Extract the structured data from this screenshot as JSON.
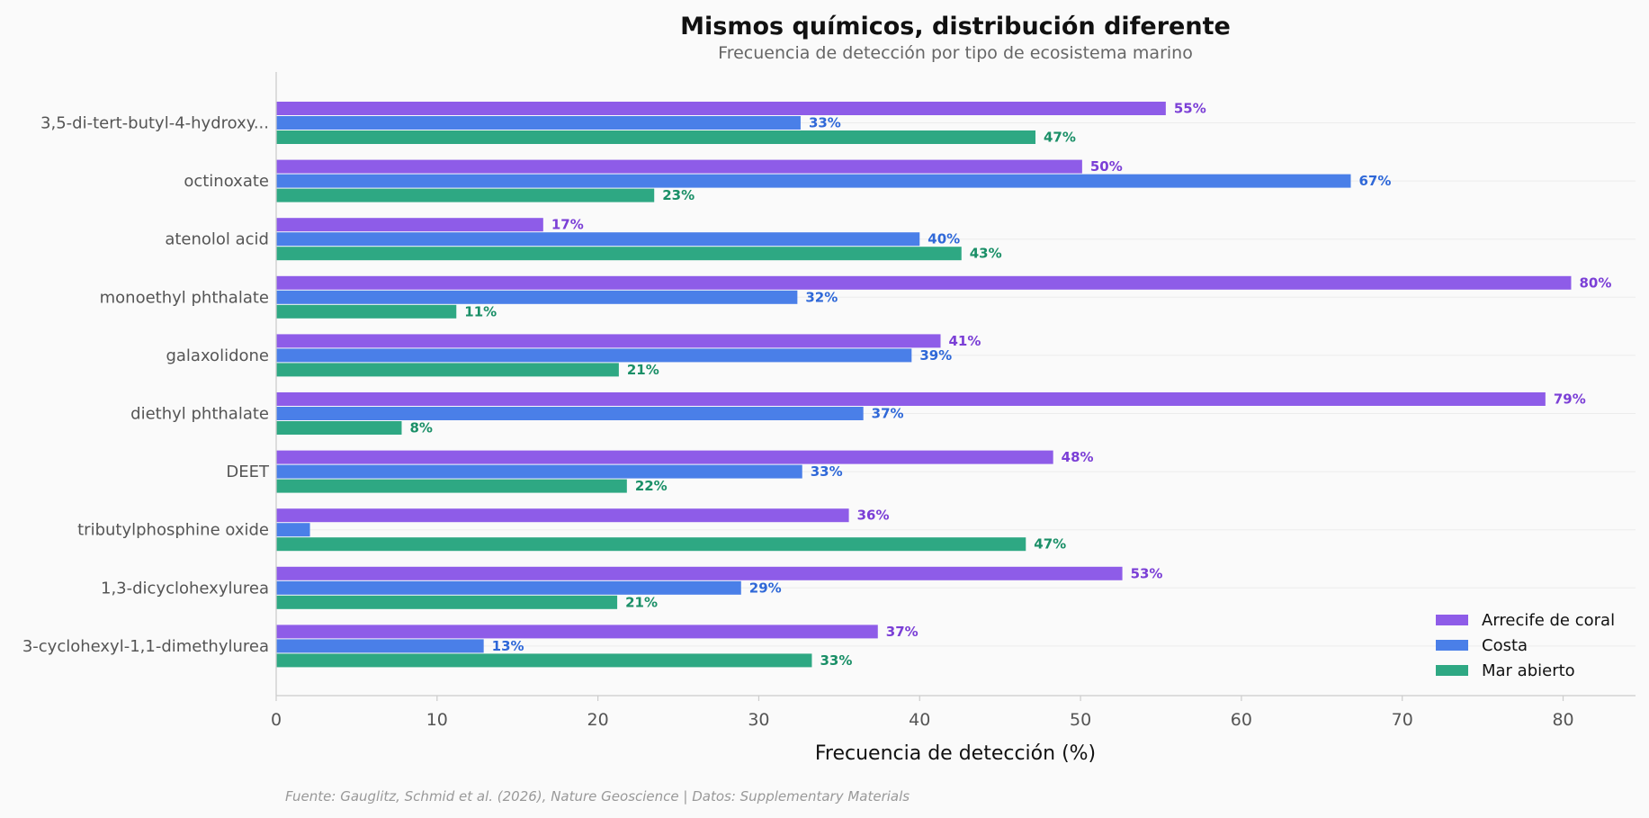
{
  "chart_data": {
    "type": "bar",
    "orientation": "horizontal",
    "title": "Mismos químicos, distribución diferente",
    "subtitle": "Frecuencia de detección por tipo de ecosistema marino",
    "xlabel": "Frecuencia de detección (%)",
    "ylabel": "",
    "xlim": [
      0,
      84.5
    ],
    "xticks": [
      0,
      10,
      20,
      30,
      40,
      50,
      60,
      70,
      80
    ],
    "grid": "horizontal-light",
    "legend_position": "lower-right",
    "value_suffix": "%",
    "categories": [
      "3,5-di-tert-butyl-4-hydroxy...",
      "octinoxate",
      "atenolol acid",
      "monoethyl phthalate",
      "galaxolidone",
      "diethyl phthalate",
      "DEET",
      "tributylphosphine oxide",
      "1,3-dicyclohexylurea",
      "3-cyclohexyl-1,1-dimethylurea"
    ],
    "series": [
      {
        "name": "Arrecife de coral",
        "color": "#8e5ce8",
        "label_color": "#7b3fd6",
        "values": [
          55.3,
          50.1,
          16.6,
          80.5,
          41.3,
          78.9,
          48.3,
          35.6,
          52.6,
          37.4
        ],
        "labels": [
          "55%",
          "50%",
          "17%",
          "80%",
          "41%",
          "79%",
          "48%",
          "36%",
          "53%",
          "37%"
        ]
      },
      {
        "name": "Costa",
        "color": "#4a7fe8",
        "label_color": "#2f68d8",
        "values": [
          32.6,
          66.8,
          40.0,
          32.4,
          39.5,
          36.5,
          32.7,
          2.1,
          28.9,
          12.9
        ],
        "labels": [
          "33%",
          "67%",
          "40%",
          "32%",
          "39%",
          "37%",
          "33%",
          "",
          "29%",
          "13%"
        ]
      },
      {
        "name": "Mar abierto",
        "color": "#2ea883",
        "label_color": "#1a8f67",
        "values": [
          47.2,
          23.5,
          42.6,
          11.2,
          21.3,
          7.8,
          21.8,
          46.6,
          21.2,
          33.3
        ],
        "labels": [
          "47%",
          "23%",
          "43%",
          "11%",
          "21%",
          "8%",
          "22%",
          "47%",
          "21%",
          "33%"
        ]
      }
    ],
    "source_note": "Fuente: Gauglitz, Schmid et al. (2026), Nature Geoscience | Datos: Supplementary Materials"
  }
}
